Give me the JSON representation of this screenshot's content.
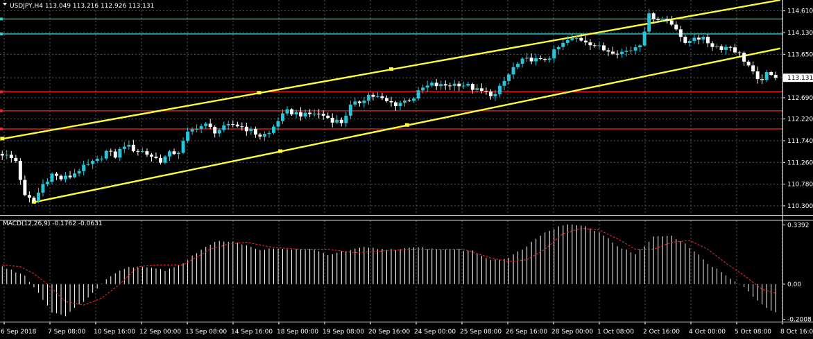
{
  "header": {
    "main_title": "USDJPY,H4  113.049 113.216 112.926 113.131",
    "macd_title": "MACD(12,26,9) -0.1762 -0.0631"
  },
  "colors": {
    "background": "#000000",
    "grid": "#5a5a5a",
    "bull_candle": "#26c6da",
    "bear_candle": "#ffffff",
    "trend_line": "#ffff33",
    "cyan_level": "#33cccc",
    "red_level": "#ff2020",
    "macd_hist": "#ffffff",
    "macd_signal": "#ff2a2a"
  },
  "chart_data": [
    {
      "type": "candlestick",
      "title": "USDJPY,H4",
      "ylim": [
        110.1,
        114.85
      ],
      "price_ticks": [
        "114.610",
        "114.130",
        "113.650",
        "113.131",
        "112.690",
        "112.220",
        "111.740",
        "111.260",
        "110.780",
        "110.300"
      ],
      "current_price": 113.131,
      "x_tick_labels": [
        "6 Sep 2018",
        "7 Sep 08:00",
        "10 Sep 16:00",
        "12 Sep 00:00",
        "13 Sep 08:00",
        "14 Sep 16:00",
        "18 Sep 00:00",
        "19 Sep 08:00",
        "20 Sep 16:00",
        "24 Sep 00:00",
        "25 Sep 08:00",
        "26 Sep 16:00",
        "28 Sep 00:00",
        "1 Oct 08:00",
        "2 Oct 16:00",
        "4 Oct 00:00",
        "5 Oct 08:00",
        "8 Oct 16:00"
      ],
      "horizontal_levels": {
        "cyan": [
          114.43,
          114.1
        ],
        "red": [
          112.82,
          112.4,
          112.0
        ]
      },
      "trend_lines": [
        {
          "from": [
            0,
            111.78
          ],
          "to": [
            172,
            114.85
          ]
        },
        {
          "from": [
            7,
            110.38
          ],
          "to": [
            172,
            113.78
          ]
        }
      ],
      "close_path": [
        [
          0,
          111.45
        ],
        [
          3,
          111.3
        ],
        [
          5,
          110.5
        ],
        [
          7,
          110.4
        ],
        [
          9,
          110.78
        ],
        [
          11,
          111.0
        ],
        [
          13,
          110.9
        ],
        [
          15,
          110.95
        ],
        [
          17,
          111.1
        ],
        [
          19,
          111.2
        ],
        [
          21,
          111.3
        ],
        [
          23,
          111.5
        ],
        [
          25,
          111.4
        ],
        [
          27,
          111.65
        ],
        [
          29,
          111.55
        ],
        [
          31,
          111.5
        ],
        [
          33,
          111.4
        ],
        [
          35,
          111.3
        ],
        [
          37,
          111.45
        ],
        [
          39,
          111.5
        ],
        [
          41,
          111.9
        ],
        [
          43,
          112.05
        ],
        [
          45,
          112.08
        ],
        [
          47,
          111.95
        ],
        [
          49,
          112.02
        ],
        [
          51,
          112.1
        ],
        [
          53,
          112.05
        ],
        [
          55,
          111.95
        ],
        [
          57,
          111.85
        ],
        [
          59,
          111.9
        ],
        [
          61,
          112.2
        ],
        [
          63,
          112.38
        ],
        [
          65,
          112.35
        ],
        [
          67,
          112.3
        ],
        [
          69,
          112.35
        ],
        [
          71,
          112.3
        ],
        [
          73,
          112.2
        ],
        [
          75,
          112.15
        ],
        [
          77,
          112.5
        ],
        [
          79,
          112.6
        ],
        [
          81,
          112.75
        ],
        [
          83,
          112.7
        ],
        [
          85,
          112.6
        ],
        [
          87,
          112.55
        ],
        [
          89,
          112.62
        ],
        [
          91,
          112.7
        ],
        [
          93,
          112.9
        ],
        [
          95,
          112.98
        ],
        [
          97,
          112.95
        ],
        [
          99,
          112.98
        ],
        [
          101,
          113.0
        ],
        [
          103,
          112.95
        ],
        [
          105,
          112.85
        ],
        [
          107,
          112.8
        ],
        [
          109,
          112.75
        ],
        [
          111,
          113.05
        ],
        [
          113,
          113.35
        ],
        [
          115,
          113.5
        ],
        [
          117,
          113.55
        ],
        [
          119,
          113.5
        ],
        [
          121,
          113.6
        ],
        [
          123,
          113.8
        ],
        [
          125,
          113.95
        ],
        [
          127,
          114.0
        ],
        [
          129,
          113.95
        ],
        [
          131,
          113.85
        ],
        [
          133,
          113.75
        ],
        [
          135,
          113.72
        ],
        [
          137,
          113.7
        ],
        [
          139,
          113.75
        ],
        [
          141,
          113.9
        ],
        [
          143,
          114.5
        ],
        [
          145,
          114.45
        ],
        [
          147,
          114.4
        ],
        [
          149,
          114.25
        ],
        [
          151,
          113.85
        ],
        [
          153,
          114.05
        ],
        [
          155,
          113.98
        ],
        [
          157,
          113.85
        ],
        [
          159,
          113.8
        ],
        [
          161,
          113.82
        ],
        [
          163,
          113.65
        ],
        [
          165,
          113.4
        ],
        [
          167,
          113.05
        ],
        [
          169,
          113.2
        ],
        [
          171,
          113.13
        ]
      ]
    },
    {
      "type": "bar",
      "title": "MACD(12,26,9)",
      "values": {
        "macd": -0.1762,
        "signal": -0.0631
      },
      "ylim": [
        -0.215,
        0.365
      ],
      "ticks": [
        "0.3392",
        "0.00",
        "-0.2008"
      ],
      "macd_path": [
        [
          0,
          0.1
        ],
        [
          5,
          0.05
        ],
        [
          8,
          -0.05
        ],
        [
          11,
          -0.16
        ],
        [
          14,
          -0.18
        ],
        [
          17,
          -0.12
        ],
        [
          20,
          -0.05
        ],
        [
          24,
          0.05
        ],
        [
          28,
          0.1
        ],
        [
          32,
          0.1
        ],
        [
          36,
          0.08
        ],
        [
          40,
          0.12
        ],
        [
          44,
          0.2
        ],
        [
          48,
          0.25
        ],
        [
          52,
          0.24
        ],
        [
          56,
          0.2
        ],
        [
          60,
          0.2
        ],
        [
          64,
          0.2
        ],
        [
          68,
          0.2
        ],
        [
          72,
          0.17
        ],
        [
          76,
          0.19
        ],
        [
          80,
          0.21
        ],
        [
          84,
          0.2
        ],
        [
          88,
          0.2
        ],
        [
          92,
          0.21
        ],
        [
          96,
          0.2
        ],
        [
          100,
          0.2
        ],
        [
          104,
          0.19
        ],
        [
          108,
          0.14
        ],
        [
          112,
          0.15
        ],
        [
          116,
          0.22
        ],
        [
          120,
          0.3
        ],
        [
          124,
          0.34
        ],
        [
          128,
          0.34
        ],
        [
          132,
          0.3
        ],
        [
          136,
          0.22
        ],
        [
          140,
          0.17
        ],
        [
          144,
          0.27
        ],
        [
          148,
          0.28
        ],
        [
          152,
          0.21
        ],
        [
          156,
          0.12
        ],
        [
          160,
          0.05
        ],
        [
          164,
          -0.02
        ],
        [
          168,
          -0.12
        ],
        [
          172,
          -0.18
        ]
      ],
      "signal_path": [
        [
          0,
          0.11
        ],
        [
          4,
          0.1
        ],
        [
          7,
          0.06
        ],
        [
          10,
          0.0
        ],
        [
          14,
          -0.1
        ],
        [
          18,
          -0.12
        ],
        [
          22,
          -0.08
        ],
        [
          26,
          0.0
        ],
        [
          30,
          0.1
        ],
        [
          34,
          0.11
        ],
        [
          40,
          0.11
        ],
        [
          46,
          0.2
        ],
        [
          50,
          0.23
        ],
        [
          54,
          0.24
        ],
        [
          60,
          0.21
        ],
        [
          66,
          0.2
        ],
        [
          72,
          0.2
        ],
        [
          78,
          0.18
        ],
        [
          84,
          0.19
        ],
        [
          90,
          0.2
        ],
        [
          96,
          0.2
        ],
        [
          102,
          0.2
        ],
        [
          108,
          0.15
        ],
        [
          112,
          0.13
        ],
        [
          116,
          0.14
        ],
        [
          120,
          0.2
        ],
        [
          124,
          0.29
        ],
        [
          128,
          0.32
        ],
        [
          132,
          0.31
        ],
        [
          136,
          0.26
        ],
        [
          140,
          0.2
        ],
        [
          144,
          0.2
        ],
        [
          148,
          0.24
        ],
        [
          152,
          0.25
        ],
        [
          156,
          0.2
        ],
        [
          160,
          0.12
        ],
        [
          164,
          0.05
        ],
        [
          168,
          -0.03
        ],
        [
          172,
          -0.06
        ]
      ]
    }
  ]
}
